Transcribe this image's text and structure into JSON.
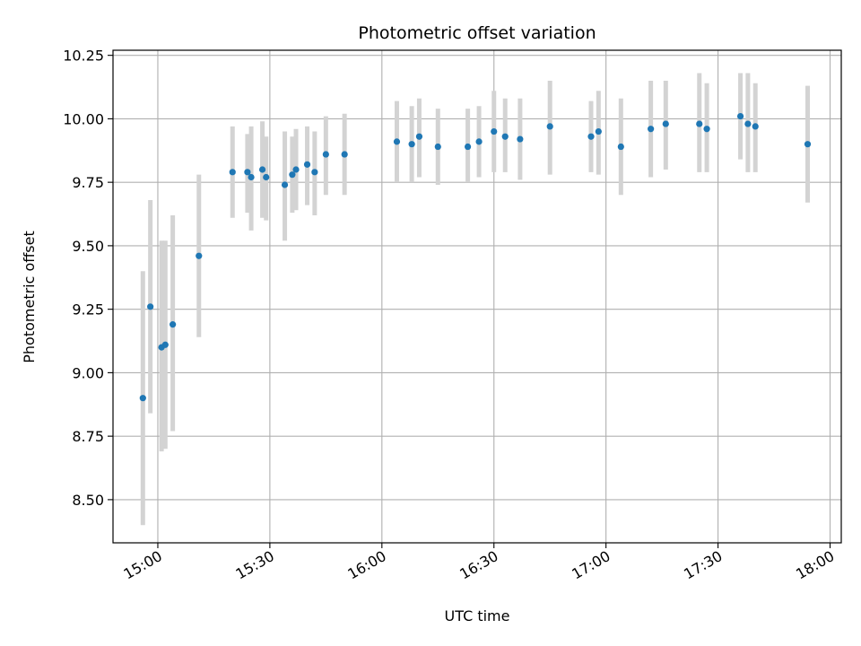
{
  "chart_data": {
    "type": "scatter",
    "title": "Photometric offset variation",
    "xlabel": "UTC time",
    "ylabel": "Photometric offset",
    "x_axis": "time",
    "x_ticks": [
      "15:00",
      "15:30",
      "16:00",
      "16:30",
      "17:00",
      "17:30",
      "18:00"
    ],
    "x_tick_minutes": [
      900,
      930,
      960,
      990,
      1020,
      1050,
      1080
    ],
    "xlim": [
      "14:48",
      "18:03"
    ],
    "y_ticks": [
      "8.50",
      "8.75",
      "9.00",
      "9.25",
      "9.50",
      "9.75",
      "10.00",
      "10.25"
    ],
    "ylim": [
      8.33,
      10.27
    ],
    "grid": true,
    "colors": {
      "point": "#1f77b4",
      "errorbar": "#d3d3d3",
      "grid": "#b0b0b0"
    },
    "points": [
      {
        "x": "14:56",
        "y": 8.9,
        "lo": 8.4,
        "hi": 9.4
      },
      {
        "x": "14:58",
        "y": 9.26,
        "lo": 8.84,
        "hi": 9.68
      },
      {
        "x": "15:01",
        "y": 9.1,
        "lo": 8.69,
        "hi": 9.52
      },
      {
        "x": "15:02",
        "y": 9.11,
        "lo": 8.7,
        "hi": 9.52
      },
      {
        "x": "15:04",
        "y": 9.19,
        "lo": 8.77,
        "hi": 9.62
      },
      {
        "x": "15:11",
        "y": 9.46,
        "lo": 9.14,
        "hi": 9.78
      },
      {
        "x": "15:20",
        "y": 9.79,
        "lo": 9.61,
        "hi": 9.97
      },
      {
        "x": "15:24",
        "y": 9.79,
        "lo": 9.63,
        "hi": 9.94
      },
      {
        "x": "15:25",
        "y": 9.77,
        "lo": 9.56,
        "hi": 9.97
      },
      {
        "x": "15:28",
        "y": 9.8,
        "lo": 9.61,
        "hi": 9.99
      },
      {
        "x": "15:29",
        "y": 9.77,
        "lo": 9.6,
        "hi": 9.93
      },
      {
        "x": "15:34",
        "y": 9.74,
        "lo": 9.52,
        "hi": 9.95
      },
      {
        "x": "15:36",
        "y": 9.78,
        "lo": 9.63,
        "hi": 9.93
      },
      {
        "x": "15:37",
        "y": 9.8,
        "lo": 9.64,
        "hi": 9.96
      },
      {
        "x": "15:40",
        "y": 9.82,
        "lo": 9.66,
        "hi": 9.97
      },
      {
        "x": "15:42",
        "y": 9.79,
        "lo": 9.62,
        "hi": 9.95
      },
      {
        "x": "15:45",
        "y": 9.86,
        "lo": 9.7,
        "hi": 10.01
      },
      {
        "x": "15:50",
        "y": 9.86,
        "lo": 9.7,
        "hi": 10.02
      },
      {
        "x": "16:04",
        "y": 9.91,
        "lo": 9.75,
        "hi": 10.07
      },
      {
        "x": "16:08",
        "y": 9.9,
        "lo": 9.75,
        "hi": 10.05
      },
      {
        "x": "16:10",
        "y": 9.93,
        "lo": 9.77,
        "hi": 10.08
      },
      {
        "x": "16:15",
        "y": 9.89,
        "lo": 9.74,
        "hi": 10.04
      },
      {
        "x": "16:23",
        "y": 9.89,
        "lo": 9.75,
        "hi": 10.04
      },
      {
        "x": "16:26",
        "y": 9.91,
        "lo": 9.77,
        "hi": 10.05
      },
      {
        "x": "16:30",
        "y": 9.95,
        "lo": 9.79,
        "hi": 10.11
      },
      {
        "x": "16:33",
        "y": 9.93,
        "lo": 9.79,
        "hi": 10.08
      },
      {
        "x": "16:37",
        "y": 9.92,
        "lo": 9.76,
        "hi": 10.08
      },
      {
        "x": "16:45",
        "y": 9.97,
        "lo": 9.78,
        "hi": 10.15
      },
      {
        "x": "16:56",
        "y": 9.93,
        "lo": 9.79,
        "hi": 10.07
      },
      {
        "x": "16:58",
        "y": 9.95,
        "lo": 9.78,
        "hi": 10.11
      },
      {
        "x": "17:04",
        "y": 9.89,
        "lo": 9.7,
        "hi": 10.08
      },
      {
        "x": "17:12",
        "y": 9.96,
        "lo": 9.77,
        "hi": 10.15
      },
      {
        "x": "17:16",
        "y": 9.98,
        "lo": 9.8,
        "hi": 10.15
      },
      {
        "x": "17:25",
        "y": 9.98,
        "lo": 9.79,
        "hi": 10.18
      },
      {
        "x": "17:27",
        "y": 9.96,
        "lo": 9.79,
        "hi": 10.14
      },
      {
        "x": "17:36",
        "y": 10.01,
        "lo": 9.84,
        "hi": 10.18
      },
      {
        "x": "17:38",
        "y": 9.98,
        "lo": 9.79,
        "hi": 10.18
      },
      {
        "x": "17:40",
        "y": 9.97,
        "lo": 9.79,
        "hi": 10.14
      },
      {
        "x": "17:54",
        "y": 9.9,
        "lo": 9.67,
        "hi": 10.13
      }
    ]
  }
}
